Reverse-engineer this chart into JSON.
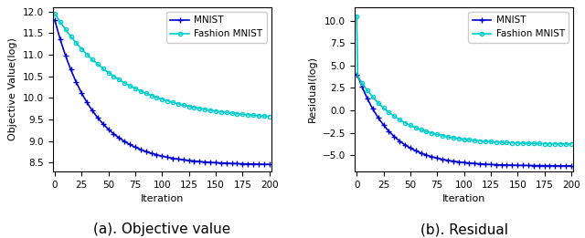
{
  "mnist_color": "#0000cc",
  "fashion_color": "#00cdcd",
  "mnist_marker": "+",
  "fashion_marker": "o",
  "mnist_marker_size": 5,
  "fashion_marker_size": 3,
  "linewidth": 1.2,
  "obj_ylabel": "Objective Value(log)",
  "obj_xlabel": "Iteration",
  "obj_ylim": [
    8.3,
    12.1
  ],
  "obj_yticks": [
    8.5,
    9.0,
    9.5,
    10.0,
    10.5,
    11.0,
    11.5,
    12.0
  ],
  "obj_xlim": [
    -2,
    202
  ],
  "obj_caption": "(a). Objective value",
  "res_ylabel": "Residual(log)",
  "res_xlabel": "Iteration",
  "res_ylim": [
    -6.8,
    11.5
  ],
  "res_yticks": [
    -5.0,
    -2.5,
    0.0,
    2.5,
    5.0,
    7.5,
    10.0
  ],
  "res_xlim": [
    -2,
    202
  ],
  "res_caption": "(b). Residual",
  "legend_labels": [
    "MNIST",
    "Fashion MNIST"
  ],
  "caption_fontsize": 11,
  "bg_color": "#ffffff"
}
